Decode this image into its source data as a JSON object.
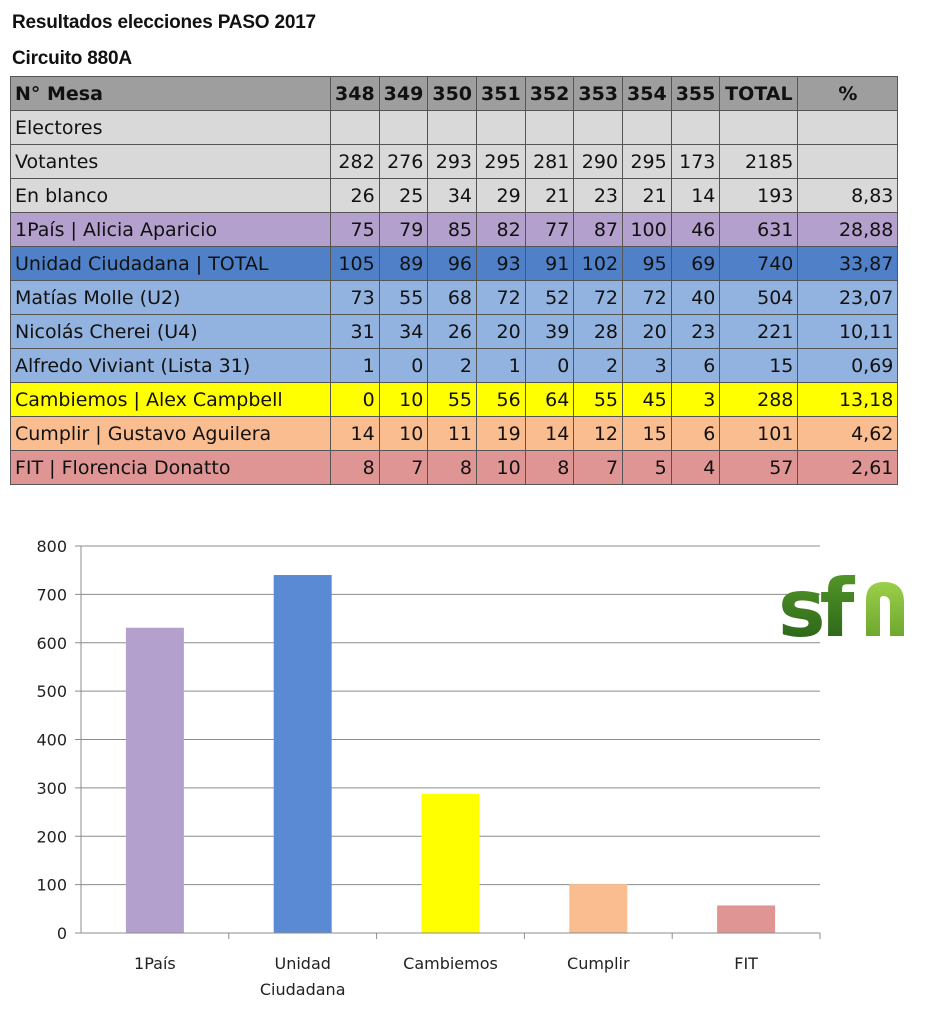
{
  "title": "Resultados elecciones PASO 2017",
  "subtitle": "Circuito 880A",
  "table": {
    "headers": [
      "N° Mesa",
      "348",
      "349",
      "350",
      "351",
      "352",
      "353",
      "354",
      "355",
      "TOTAL",
      "%"
    ],
    "rows": [
      {
        "label": "Electores",
        "cells": [
          "",
          "",
          "",
          "",
          "",
          "",
          "",
          "",
          "",
          ""
        ],
        "color": "#d9d9d9"
      },
      {
        "label": "Votantes",
        "cells": [
          "282",
          "276",
          "293",
          "295",
          "281",
          "290",
          "295",
          "173",
          "2185",
          ""
        ],
        "color": "#d9d9d9"
      },
      {
        "label": "En blanco",
        "cells": [
          "26",
          "25",
          "34",
          "29",
          "21",
          "23",
          "21",
          "14",
          "193",
          "8,83"
        ],
        "color": "#d9d9d9"
      },
      {
        "label": "1País | Alicia Aparicio",
        "cells": [
          "75",
          "79",
          "85",
          "82",
          "77",
          "87",
          "100",
          "46",
          "631",
          "28,88"
        ],
        "color": "#b4a0cd"
      },
      {
        "label": "Unidad Ciudadana | TOTAL",
        "cells": [
          "105",
          "89",
          "96",
          "93",
          "91",
          "102",
          "95",
          "69",
          "740",
          "33,87"
        ],
        "color": "#4f80c8"
      },
      {
        "label": "Matías Molle (U2)",
        "cells": [
          "73",
          "55",
          "68",
          "72",
          "52",
          "72",
          "72",
          "40",
          "504",
          "23,07"
        ],
        "color": "#92b3e0"
      },
      {
        "label": "Nicolás Cherei (U4)",
        "cells": [
          "31",
          "34",
          "26",
          "20",
          "39",
          "28",
          "20",
          "23",
          "221",
          "10,11"
        ],
        "color": "#92b3e0"
      },
      {
        "label": "Alfredo Viviant (Lista 31)",
        "cells": [
          "1",
          "0",
          "2",
          "1",
          "0",
          "2",
          "3",
          "6",
          "15",
          "0,69"
        ],
        "color": "#92b3e0"
      },
      {
        "label": "Cambiemos | Alex Campbell",
        "cells": [
          "0",
          "10",
          "55",
          "56",
          "64",
          "55",
          "45",
          "3",
          "288",
          "13,18"
        ],
        "color": "#ffff00"
      },
      {
        "label": "Cumplir | Gustavo Aguilera",
        "cells": [
          "14",
          "10",
          "11",
          "19",
          "14",
          "12",
          "15",
          "6",
          "101",
          "4,62"
        ],
        "color": "#f9bd8f"
      },
      {
        "label": "FIT | Florencia Donatto",
        "cells": [
          "8",
          "7",
          "8",
          "10",
          "8",
          "7",
          "5",
          "4",
          "57",
          "2,61"
        ],
        "color": "#e09595"
      }
    ]
  },
  "chart_data": {
    "type": "bar",
    "categories": [
      "1País",
      "Unidad Ciudadana",
      "Cambiemos",
      "Cumplir",
      "FIT"
    ],
    "values": [
      631,
      740,
      288,
      101,
      57
    ],
    "colors": [
      "#b4a0cd",
      "#5b8ad4",
      "#ffff00",
      "#f9bd8f",
      "#e09595"
    ],
    "ylim": [
      0,
      800
    ],
    "yticks": [
      0,
      100,
      200,
      300,
      400,
      500,
      600,
      700,
      800
    ],
    "grid": true,
    "title": "",
    "xlabel": "",
    "ylabel": ""
  },
  "logo": {
    "text": "sfn",
    "color_dark": "#2e6e1e",
    "color_light": "#8cc43c"
  }
}
